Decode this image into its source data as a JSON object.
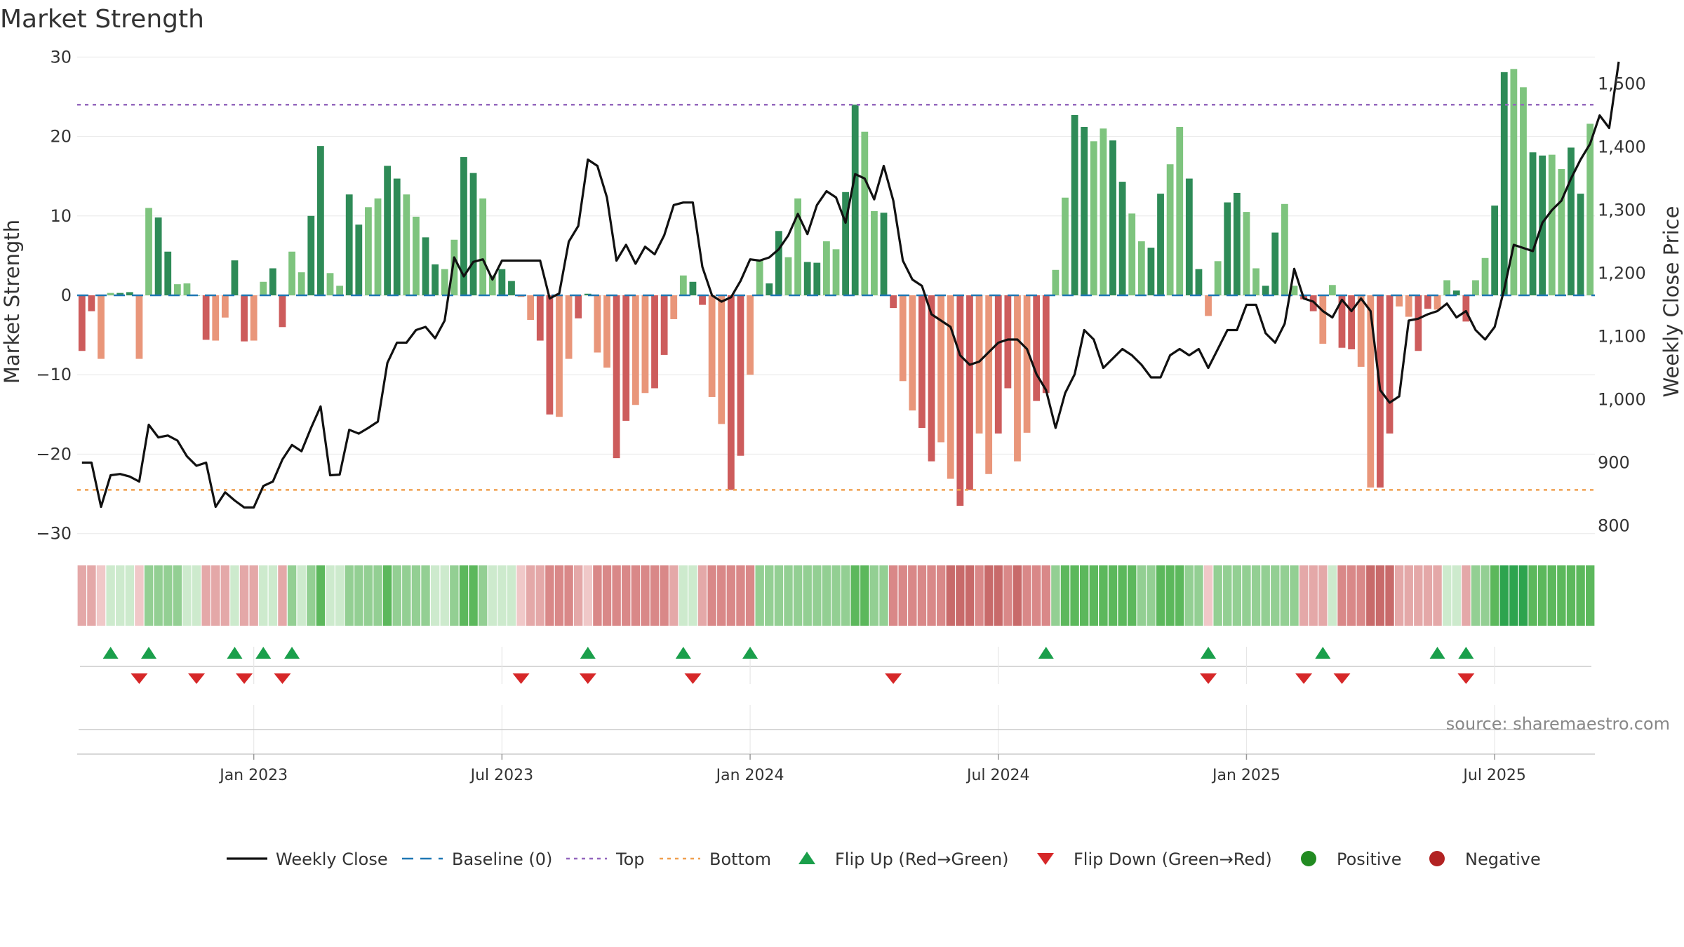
{
  "chart_data": {
    "type": "bar",
    "title": "Market Strength",
    "ylabel": "Market Strength",
    "y2label": "Weekly Close Price",
    "ylim": [
      -31,
      31
    ],
    "y2lim": [
      775,
      1555
    ],
    "yticks": [
      {
        "v": 30,
        "label": "30"
      },
      {
        "v": 20,
        "label": "20"
      },
      {
        "v": 10,
        "label": "10"
      },
      {
        "v": 0,
        "label": "0"
      },
      {
        "v": -10,
        "label": "−10"
      },
      {
        "v": -20,
        "label": "−20"
      },
      {
        "v": -30,
        "label": "−30"
      }
    ],
    "y2ticks": [
      {
        "v": 1500,
        "label": "1,500"
      },
      {
        "v": 1400,
        "label": "1,400"
      },
      {
        "v": 1300,
        "label": "1,300"
      },
      {
        "v": 1200,
        "label": "1,200"
      },
      {
        "v": 1100,
        "label": "1,100"
      },
      {
        "v": 1000,
        "label": "1,000"
      },
      {
        "v": 900,
        "label": "900"
      },
      {
        "v": 800,
        "label": "800"
      }
    ],
    "xticks": [
      {
        "i": 18,
        "label": "Jan 2023"
      },
      {
        "i": 44,
        "label": "Jul 2023"
      },
      {
        "i": 70,
        "label": "Jan 2024"
      },
      {
        "i": 96,
        "label": "Jul 2024"
      },
      {
        "i": 122,
        "label": "Jan 2025"
      },
      {
        "i": 148,
        "label": "Jul 2025"
      }
    ],
    "top": 24,
    "bottom": -24.5,
    "strength": [
      -7,
      -2,
      -8,
      0.3,
      0.3,
      0.4,
      -8,
      11,
      9.8,
      5.5,
      1.4,
      1.5,
      0,
      -5.6,
      -5.7,
      -2.8,
      4.4,
      -5.8,
      -5.7,
      1.7,
      3.4,
      -4,
      5.5,
      2.9,
      10,
      18.8,
      2.8,
      1.2,
      12.7,
      8.9,
      11.1,
      12.2,
      16.3,
      14.7,
      12.7,
      9.9,
      7.3,
      3.9,
      3.3,
      7,
      17.4,
      15.4,
      12.2,
      2.5,
      3.3,
      1.8,
      -0.2,
      -3.1,
      -5.7,
      -15,
      -15.3,
      -8,
      -2.9,
      0.2,
      -7.2,
      -9.1,
      -20.5,
      -15.8,
      -13.8,
      -12.3,
      -11.7,
      -7.5,
      -3,
      2.5,
      1.7,
      -1.2,
      -12.8,
      -16.2,
      -24.5,
      -20.2,
      -10,
      4.5,
      1.5,
      8.1,
      4.8,
      12.2,
      4.2,
      4.1,
      6.8,
      5.8,
      13,
      24,
      20.6,
      10.6,
      10.4,
      -1.6,
      -10.8,
      -14.5,
      -16.7,
      -20.9,
      -18.5,
      -23.1,
      -26.5,
      -24.5,
      -17.4,
      -22.5,
      -17.4,
      -11.7,
      -20.9,
      -17.3,
      -13.3,
      -12.3,
      3.2,
      12.3,
      22.7,
      21.2,
      19.4,
      21,
      19.5,
      14.3,
      10.3,
      6.8,
      6,
      12.8,
      16.5,
      21.2,
      14.7,
      3.3,
      -2.6,
      4.3,
      11.7,
      12.9,
      10.5,
      3.4,
      1.2,
      7.9,
      11.5,
      1.2,
      -0.5,
      -2,
      -6.1,
      1.3,
      -6.6,
      -6.8,
      -9,
      -24.2,
      -24.2,
      -17.4,
      -1.4,
      -2.7,
      -7,
      -1.7,
      -1.8,
      1.9,
      0.6,
      -3.3,
      1.9,
      4.7,
      11.3,
      28.1,
      28.5,
      26.2,
      18,
      17.6,
      17.7,
      15.9,
      18.6,
      12.8,
      21.6
    ],
    "close": [
      900,
      900,
      830,
      880,
      882,
      878,
      870,
      960,
      940,
      943,
      935,
      910,
      895,
      900,
      830,
      853,
      840,
      829,
      829,
      863,
      870,
      905,
      928,
      918,
      955,
      989,
      880,
      881,
      952,
      946,
      955,
      965,
      1058,
      1090,
      1090,
      1110,
      1115,
      1097,
      1125,
      1225,
      1195,
      1218,
      1222,
      1190,
      1220,
      1220,
      1220,
      1220,
      1220,
      1160,
      1168,
      1250,
      1275,
      1380,
      1370,
      1320,
      1220,
      1245,
      1215,
      1242,
      1230,
      1260,
      1308,
      1312,
      1312,
      1210,
      1165,
      1155,
      1162,
      1188,
      1222,
      1220,
      1225,
      1238,
      1260,
      1294,
      1262,
      1308,
      1330,
      1320,
      1280,
      1357,
      1350,
      1317,
      1370,
      1315,
      1220,
      1190,
      1180,
      1135,
      1125,
      1115,
      1070,
      1055,
      1060,
      1075,
      1090,
      1095,
      1095,
      1080,
      1040,
      1015,
      955,
      1010,
      1040,
      1110,
      1095,
      1050,
      1065,
      1080,
      1070,
      1055,
      1035,
      1035,
      1070,
      1080,
      1070,
      1080,
      1050,
      1080,
      1110,
      1110,
      1150,
      1150,
      1105,
      1090,
      1120,
      1207,
      1160,
      1155,
      1140,
      1130,
      1158,
      1140,
      1160,
      1140,
      1015,
      995,
      1005,
      1125,
      1128,
      1135,
      1140,
      1152,
      1130,
      1140,
      1110,
      1095,
      1115,
      1175,
      1245,
      1240,
      1235,
      1280,
      1300,
      1315,
      1350,
      1380,
      1405,
      1450,
      1430,
      1535
    ],
    "sentiment": [
      -2,
      -2,
      -1,
      1,
      1,
      1,
      -1,
      2,
      2,
      2,
      2,
      1,
      1,
      -2,
      -2,
      -2,
      1,
      -2,
      -2,
      1,
      1,
      -2,
      2,
      1,
      2,
      3,
      1,
      1,
      2,
      2,
      2,
      2,
      3,
      2,
      2,
      2,
      2,
      1,
      1,
      2,
      3,
      3,
      2,
      1,
      1,
      1,
      -1,
      -2,
      -2,
      -3,
      -3,
      -3,
      -2,
      -1,
      -3,
      -3,
      -3,
      -3,
      -3,
      -3,
      -3,
      -3,
      -2,
      1,
      1,
      -2,
      -3,
      -3,
      -3,
      -3,
      -3,
      2,
      2,
      2,
      2,
      2,
      2,
      2,
      2,
      2,
      2,
      3,
      3,
      2,
      2,
      -3,
      -3,
      -3,
      -3,
      -3,
      -3,
      -4,
      -4,
      -4,
      -3,
      -4,
      -4,
      -3,
      -4,
      -3,
      -3,
      -3,
      2,
      3,
      3,
      3,
      3,
      3,
      3,
      3,
      3,
      2,
      2,
      3,
      3,
      3,
      2,
      2,
      -1,
      2,
      2,
      2,
      2,
      2,
      2,
      2,
      2,
      2,
      -2,
      -2,
      -2,
      1,
      -3,
      -3,
      -3,
      -4,
      -4,
      -4,
      -2,
      -2,
      -2,
      -2,
      -2,
      1,
      1,
      -2,
      2,
      2,
      3,
      4,
      4,
      4,
      3,
      3,
      3,
      3,
      3,
      3,
      3
    ],
    "flips_up": [
      3,
      7,
      16,
      19,
      22,
      53,
      63,
      70,
      101,
      118,
      130,
      142,
      145
    ],
    "flips_down": [
      6,
      12,
      17,
      21,
      46,
      53,
      64,
      85,
      118,
      128,
      132,
      145
    ],
    "source": "source: sharemaestro.com",
    "legend": [
      "Weekly Close",
      "Baseline (0)",
      "Top",
      "Bottom",
      "Flip Up (Red→Green)",
      "Flip Down (Green→Red)",
      "Positive",
      "Negative"
    ],
    "colors": {
      "close": "#111111",
      "baseline": "#1f77b4",
      "top": "#9467bd",
      "bottom": "#f0a050",
      "pos_dark": "#2e8b57",
      "pos_light": "#7ec47e",
      "neg_dark": "#cd5c5c",
      "neg_light": "#e9967a",
      "flip_up": "#1a9f4b",
      "flip_down": "#d62728",
      "positive": "#228b22",
      "negative": "#b22222"
    }
  }
}
